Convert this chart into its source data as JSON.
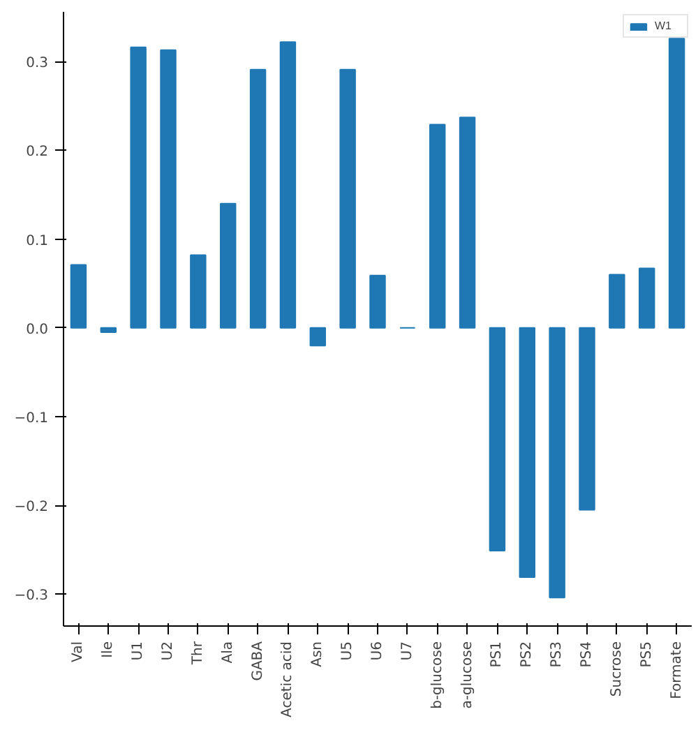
{
  "chart_data": {
    "type": "bar",
    "categories": [
      "Val",
      "Ile",
      "U1",
      "U2",
      "Thr",
      "Ala",
      "GABA",
      "Acetic acid",
      "Asn",
      "U5",
      "U6",
      "U7",
      "b-glucose",
      "a-glucose",
      "PS1",
      "PS2",
      "PS3",
      "PS4",
      "Sucrose",
      "PS5",
      "Formate"
    ],
    "series": [
      {
        "name": "W1",
        "color": "#1f77b4",
        "values": [
          0.071,
          -0.005,
          0.316,
          0.313,
          0.082,
          0.14,
          0.291,
          0.322,
          -0.02,
          0.291,
          0.059,
          0.0,
          0.229,
          0.237,
          -0.251,
          -0.281,
          -0.304,
          -0.205,
          0.06,
          0.067,
          0.326
        ]
      }
    ],
    "ylim": [
      -0.336,
      0.356
    ],
    "yticks": [
      {
        "value": -0.3,
        "label": "−0.3"
      },
      {
        "value": -0.2,
        "label": "−0.2"
      },
      {
        "value": -0.1,
        "label": "−0.1"
      },
      {
        "value": 0,
        "label": "0.0"
      },
      {
        "value": 0.1,
        "label": "0.1"
      },
      {
        "value": 0.2,
        "label": "0.2"
      },
      {
        "value": 0.3,
        "label": "0.3"
      }
    ],
    "grid": false,
    "legend": "top right"
  }
}
